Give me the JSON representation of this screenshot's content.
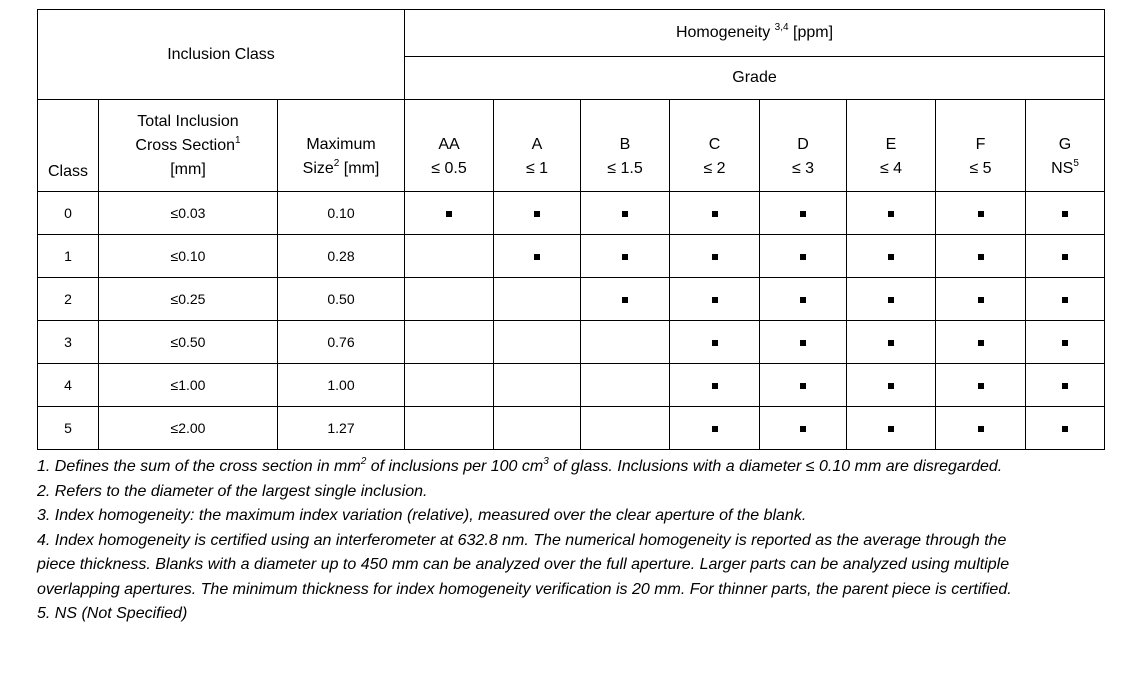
{
  "header": {
    "inclusion_class": "Inclusion Class",
    "homogeneity": "Homogeneity",
    "homogeneity_sup": "3,4",
    "homogeneity_unit": "[ppm]",
    "grade": "Grade",
    "class": "Class",
    "total_inclusion_1": "Total Inclusion",
    "total_inclusion_2": "Cross Section",
    "total_inclusion_sup": "1",
    "total_inclusion_3": "[mm]",
    "max_size_1": "Maximum",
    "max_size_2": "Size",
    "max_size_sup": "2",
    "max_size_3": " [mm]"
  },
  "grades": [
    {
      "name": "AA",
      "limit": "≤ 0.5",
      "sup": ""
    },
    {
      "name": "A",
      "limit": "≤ 1",
      "sup": ""
    },
    {
      "name": "B",
      "limit": "≤ 1.5",
      "sup": ""
    },
    {
      "name": "C",
      "limit": "≤ 2",
      "sup": ""
    },
    {
      "name": "D",
      "limit": "≤ 3",
      "sup": ""
    },
    {
      "name": "E",
      "limit": "≤ 4",
      "sup": ""
    },
    {
      "name": "F",
      "limit": "≤ 5",
      "sup": ""
    },
    {
      "name": "G",
      "limit": "NS",
      "sup": "5"
    }
  ],
  "rows": [
    {
      "class": "0",
      "cross": "≤0.03",
      "size": "0.10",
      "marks": [
        true,
        true,
        true,
        true,
        true,
        true,
        true,
        true
      ]
    },
    {
      "class": "1",
      "cross": "≤0.10",
      "size": "0.28",
      "marks": [
        false,
        true,
        true,
        true,
        true,
        true,
        true,
        true
      ]
    },
    {
      "class": "2",
      "cross": "≤0.25",
      "size": "0.50",
      "marks": [
        false,
        false,
        true,
        true,
        true,
        true,
        true,
        true
      ]
    },
    {
      "class": "3",
      "cross": "≤0.50",
      "size": "0.76",
      "marks": [
        false,
        false,
        false,
        true,
        true,
        true,
        true,
        true
      ]
    },
    {
      "class": "4",
      "cross": "≤1.00",
      "size": "1.00",
      "marks": [
        false,
        false,
        false,
        true,
        true,
        true,
        true,
        true
      ]
    },
    {
      "class": "5",
      "cross": "≤2.00",
      "size": "1.27",
      "marks": [
        false,
        false,
        false,
        true,
        true,
        true,
        true,
        true
      ]
    }
  ],
  "mark_symbol": "■",
  "notes": {
    "n1_a": "1.  Defines the sum of the cross section in mm",
    "n1_sup2": "2",
    "n1_b": " of inclusions per 100 cm",
    "n1_sup3": "3",
    "n1_c": " of glass. Inclusions with a diameter ≤ 0.10 mm are disregarded.",
    "n2": "2.  Refers to the diameter of the largest single inclusion.",
    "n3": "3.  Index homogeneity: the maximum index variation (relative), measured over the clear aperture of the blank.",
    "n4": "4.  Index homogeneity is certified using an interferometer at 632.8 nm.  The numerical homogeneity is reported as the average through the piece thickness.  Blanks with a diameter up to 450 mm can be analyzed over the full aperture.  Larger parts can be analyzed using multiple overlapping apertures.  The minimum thickness for index homogeneity verification is 20 mm.  For thinner parts, the parent piece is certified.",
    "n5": "5. NS (Not Specified)"
  }
}
